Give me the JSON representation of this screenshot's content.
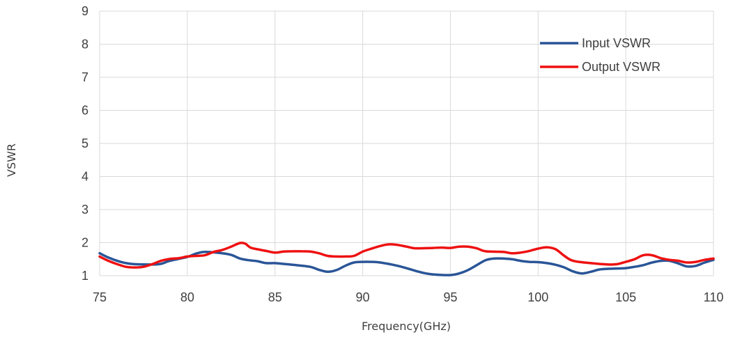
{
  "chart_data": {
    "type": "line",
    "xlabel": "Frequency(GHz)",
    "ylabel": "VSWR",
    "xlim": [
      75,
      110
    ],
    "ylim": [
      1,
      9
    ],
    "x_ticks": [
      "75",
      "80",
      "85",
      "90",
      "95",
      "100",
      "105",
      "110"
    ],
    "y_ticks": [
      "1",
      "2",
      "3",
      "4",
      "5",
      "6",
      "7",
      "8",
      "9"
    ],
    "grid": true,
    "legend_position": "top-right",
    "series": [
      {
        "name": "Input VSWR",
        "color": "#2a5597",
        "points": [
          [
            75,
            1.68
          ],
          [
            75.5,
            1.55
          ],
          [
            76,
            1.45
          ],
          [
            76.5,
            1.38
          ],
          [
            77,
            1.35
          ],
          [
            78,
            1.34
          ],
          [
            78.5,
            1.36
          ],
          [
            79,
            1.45
          ],
          [
            80,
            1.57
          ],
          [
            80.5,
            1.67
          ],
          [
            81,
            1.72
          ],
          [
            82,
            1.68
          ],
          [
            82.5,
            1.63
          ],
          [
            83,
            1.52
          ],
          [
            83.5,
            1.47
          ],
          [
            84,
            1.44
          ],
          [
            84.5,
            1.38
          ],
          [
            85,
            1.38
          ],
          [
            86,
            1.33
          ],
          [
            87,
            1.27
          ],
          [
            87.5,
            1.18
          ],
          [
            88,
            1.12
          ],
          [
            88.5,
            1.17
          ],
          [
            89,
            1.3
          ],
          [
            89.5,
            1.4
          ],
          [
            90,
            1.42
          ],
          [
            90.5,
            1.42
          ],
          [
            91,
            1.4
          ],
          [
            92,
            1.3
          ],
          [
            93,
            1.15
          ],
          [
            93.5,
            1.08
          ],
          [
            94,
            1.04
          ],
          [
            95,
            1.02
          ],
          [
            95.5,
            1.07
          ],
          [
            96,
            1.17
          ],
          [
            96.5,
            1.32
          ],
          [
            97,
            1.47
          ],
          [
            97.5,
            1.52
          ],
          [
            98,
            1.52
          ],
          [
            98.5,
            1.5
          ],
          [
            99,
            1.45
          ],
          [
            99.5,
            1.42
          ],
          [
            100,
            1.41
          ],
          [
            100.5,
            1.38
          ],
          [
            101,
            1.33
          ],
          [
            101.5,
            1.25
          ],
          [
            102,
            1.13
          ],
          [
            102.5,
            1.07
          ],
          [
            103,
            1.12
          ],
          [
            103.5,
            1.19
          ],
          [
            104,
            1.21
          ],
          [
            104.5,
            1.22
          ],
          [
            105,
            1.23
          ],
          [
            105.5,
            1.27
          ],
          [
            106,
            1.32
          ],
          [
            106.5,
            1.4
          ],
          [
            107,
            1.45
          ],
          [
            107.5,
            1.45
          ],
          [
            108,
            1.37
          ],
          [
            108.5,
            1.28
          ],
          [
            109,
            1.3
          ],
          [
            109.5,
            1.4
          ],
          [
            110,
            1.48
          ]
        ]
      },
      {
        "name": "Output VSWR",
        "color": "#ee1111",
        "points": [
          [
            75,
            1.58
          ],
          [
            75.5,
            1.45
          ],
          [
            76,
            1.35
          ],
          [
            76.5,
            1.27
          ],
          [
            77,
            1.25
          ],
          [
            77.5,
            1.27
          ],
          [
            78,
            1.35
          ],
          [
            78.5,
            1.45
          ],
          [
            79,
            1.51
          ],
          [
            79.5,
            1.53
          ],
          [
            80,
            1.58
          ],
          [
            80.5,
            1.6
          ],
          [
            81,
            1.62
          ],
          [
            81.5,
            1.72
          ],
          [
            82,
            1.78
          ],
          [
            82.5,
            1.88
          ],
          [
            83,
            1.99
          ],
          [
            83.3,
            1.97
          ],
          [
            83.6,
            1.85
          ],
          [
            84,
            1.8
          ],
          [
            84.5,
            1.75
          ],
          [
            85,
            1.7
          ],
          [
            85.5,
            1.73
          ],
          [
            86,
            1.74
          ],
          [
            86.5,
            1.74
          ],
          [
            87,
            1.73
          ],
          [
            87.5,
            1.68
          ],
          [
            88,
            1.6
          ],
          [
            88.5,
            1.58
          ],
          [
            89,
            1.58
          ],
          [
            89.5,
            1.6
          ],
          [
            90,
            1.73
          ],
          [
            90.5,
            1.82
          ],
          [
            91,
            1.9
          ],
          [
            91.5,
            1.95
          ],
          [
            92,
            1.93
          ],
          [
            92.5,
            1.88
          ],
          [
            93,
            1.83
          ],
          [
            94,
            1.84
          ],
          [
            94.5,
            1.85
          ],
          [
            95,
            1.84
          ],
          [
            95.5,
            1.88
          ],
          [
            96,
            1.88
          ],
          [
            96.5,
            1.83
          ],
          [
            97,
            1.74
          ],
          [
            98,
            1.72
          ],
          [
            98.5,
            1.68
          ],
          [
            99,
            1.7
          ],
          [
            99.5,
            1.75
          ],
          [
            100,
            1.82
          ],
          [
            100.5,
            1.86
          ],
          [
            101,
            1.8
          ],
          [
            101.5,
            1.6
          ],
          [
            102,
            1.45
          ],
          [
            103,
            1.38
          ],
          [
            104,
            1.34
          ],
          [
            104.5,
            1.35
          ],
          [
            105,
            1.42
          ],
          [
            105.5,
            1.5
          ],
          [
            106,
            1.62
          ],
          [
            106.5,
            1.62
          ],
          [
            107,
            1.53
          ],
          [
            107.5,
            1.48
          ],
          [
            108,
            1.45
          ],
          [
            108.5,
            1.4
          ],
          [
            109,
            1.42
          ],
          [
            109.5,
            1.48
          ],
          [
            110,
            1.52
          ]
        ]
      }
    ]
  }
}
